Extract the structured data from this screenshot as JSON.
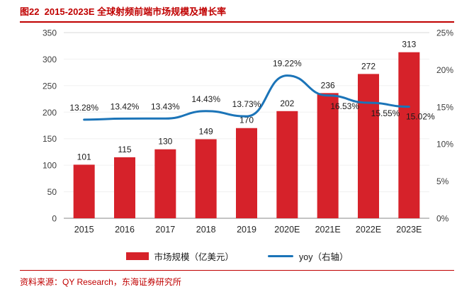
{
  "title": "图22  2015-2023E 全球射频前端市场规模及增长率",
  "source": "资料来源：QY Research，东海证券研究所",
  "colors": {
    "bar": "#d6222a",
    "line": "#1b74b8",
    "accent_red": "#c00000",
    "axis_text": "#3d3d3d",
    "label_text": "#1a1a1a"
  },
  "chart_data": {
    "type": "bar+line",
    "title": "图22  2015-2023E 全球射频前端市场规模及增长率",
    "categories": [
      "2015",
      "2016",
      "2017",
      "2018",
      "2019",
      "2020E",
      "2021E",
      "2022E",
      "2023E"
    ],
    "series": [
      {
        "name": "市场规模（亿美元）",
        "type": "bar",
        "axis": "left",
        "values": [
          101,
          115,
          130,
          149,
          170,
          202,
          236,
          272,
          313
        ]
      },
      {
        "name": "yoy（右轴）",
        "type": "line",
        "axis": "right",
        "values": [
          13.28,
          13.42,
          13.43,
          14.43,
          13.73,
          19.22,
          16.53,
          15.55,
          15.02
        ]
      }
    ],
    "left_axis": {
      "min": 0,
      "max": 350,
      "step": 50,
      "ticks": [
        0,
        50,
        100,
        150,
        200,
        250,
        300,
        350
      ]
    },
    "right_axis": {
      "min": 0,
      "max": 25,
      "step": 5,
      "ticks": [
        "0%",
        "5%",
        "10%",
        "15%",
        "20%",
        "25%"
      ]
    },
    "legend_position": "bottom",
    "grid": "horizontal-light"
  }
}
